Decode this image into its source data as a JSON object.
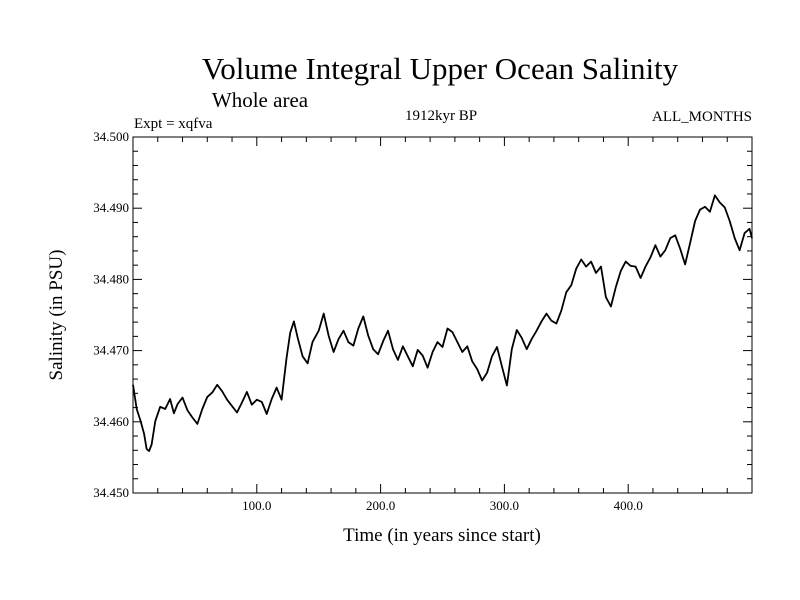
{
  "chart_data": {
    "type": "line",
    "title": "Volume Integral Upper Ocean Salinity",
    "subtitle": "Whole area",
    "experiment": "Expt = xqfva",
    "period": "1912kyr BP",
    "months": "ALL_MONTHS",
    "xlabel": "Time (in years since start)",
    "ylabel": "Salinity (in PSU)",
    "xlim": [
      0,
      500
    ],
    "ylim": [
      34.45,
      34.5
    ],
    "x_ticks": [
      100,
      200,
      300,
      400
    ],
    "x_tick_labels": [
      "100.0",
      "200.0",
      "300.0",
      "400.0"
    ],
    "y_ticks": [
      34.45,
      34.46,
      34.47,
      34.48,
      34.49,
      34.5
    ],
    "y_tick_labels": [
      "34.450",
      "34.460",
      "34.470",
      "34.480",
      "34.490",
      "34.500"
    ],
    "series": [
      {
        "name": "salinity",
        "color": "#000000",
        "x": [
          0,
          3,
          6,
          9,
          11,
          13,
          15,
          18,
          22,
          26,
          30,
          33,
          36,
          40,
          44,
          48,
          52,
          56,
          60,
          64,
          68,
          72,
          76,
          80,
          84,
          88,
          92,
          96,
          100,
          104,
          108,
          112,
          116,
          120,
          124,
          127,
          130,
          133,
          137,
          141,
          145,
          150,
          154,
          158,
          162,
          166,
          170,
          174,
          178,
          182,
          186,
          190,
          194,
          198,
          202,
          206,
          210,
          214,
          218,
          222,
          226,
          230,
          234,
          238,
          242,
          246,
          250,
          254,
          258,
          262,
          266,
          270,
          274,
          278,
          282,
          286,
          290,
          294,
          298,
          302,
          306,
          310,
          314,
          318,
          322,
          326,
          330,
          334,
          338,
          342,
          346,
          350,
          354,
          358,
          362,
          366,
          370,
          374,
          378,
          382,
          386,
          390,
          394,
          398,
          402,
          406,
          410,
          414,
          418,
          422,
          426,
          430,
          434,
          438,
          442,
          446,
          450,
          454,
          458,
          462,
          466,
          470,
          474,
          478,
          482,
          486,
          490,
          494,
          498,
          500
        ],
        "values": [
          34.4652,
          34.4618,
          34.4602,
          34.4583,
          34.4562,
          34.4559,
          34.4568,
          34.4601,
          34.4621,
          34.4618,
          34.4632,
          34.4612,
          34.4625,
          34.4634,
          34.4616,
          34.4606,
          34.4597,
          34.4618,
          34.4635,
          34.4641,
          34.4652,
          34.4643,
          34.4631,
          34.4622,
          34.4613,
          34.4627,
          34.4642,
          34.4624,
          34.4631,
          34.4628,
          34.4611,
          34.4632,
          34.4648,
          34.4631,
          34.4689,
          34.4725,
          34.4741,
          34.4718,
          34.4692,
          34.4682,
          34.4712,
          34.4728,
          34.4752,
          34.4721,
          34.4698,
          34.4716,
          34.4728,
          34.4712,
          34.4707,
          34.4731,
          34.4748,
          34.4721,
          34.4702,
          34.4695,
          34.4713,
          34.4728,
          34.4702,
          34.4687,
          34.4706,
          34.4692,
          34.4678,
          34.4701,
          34.4693,
          34.4676,
          34.4698,
          34.4712,
          34.4705,
          34.4731,
          34.4726,
          34.4712,
          34.4698,
          34.4706,
          34.4685,
          34.4674,
          34.4658,
          34.4669,
          34.4692,
          34.4705,
          34.4678,
          34.4651,
          34.4702,
          34.4729,
          34.4718,
          34.4702,
          34.4716,
          34.4728,
          34.4741,
          34.4752,
          34.4742,
          34.4738,
          34.4756,
          34.4782,
          34.4792,
          34.4815,
          34.4828,
          34.4818,
          34.4825,
          34.4809,
          34.4818,
          34.4775,
          34.4762,
          34.4789,
          34.4812,
          34.4825,
          34.4819,
          34.4818,
          34.4802,
          34.4818,
          34.4831,
          34.4848,
          34.4832,
          34.4841,
          34.4858,
          34.4862,
          34.4843,
          34.4821,
          34.4851,
          34.4882,
          34.4898,
          34.4902,
          34.4895,
          34.4918,
          34.4908,
          34.4901,
          34.4882,
          34.4858,
          34.4841,
          34.4865,
          34.4871,
          34.4858
        ]
      }
    ]
  }
}
